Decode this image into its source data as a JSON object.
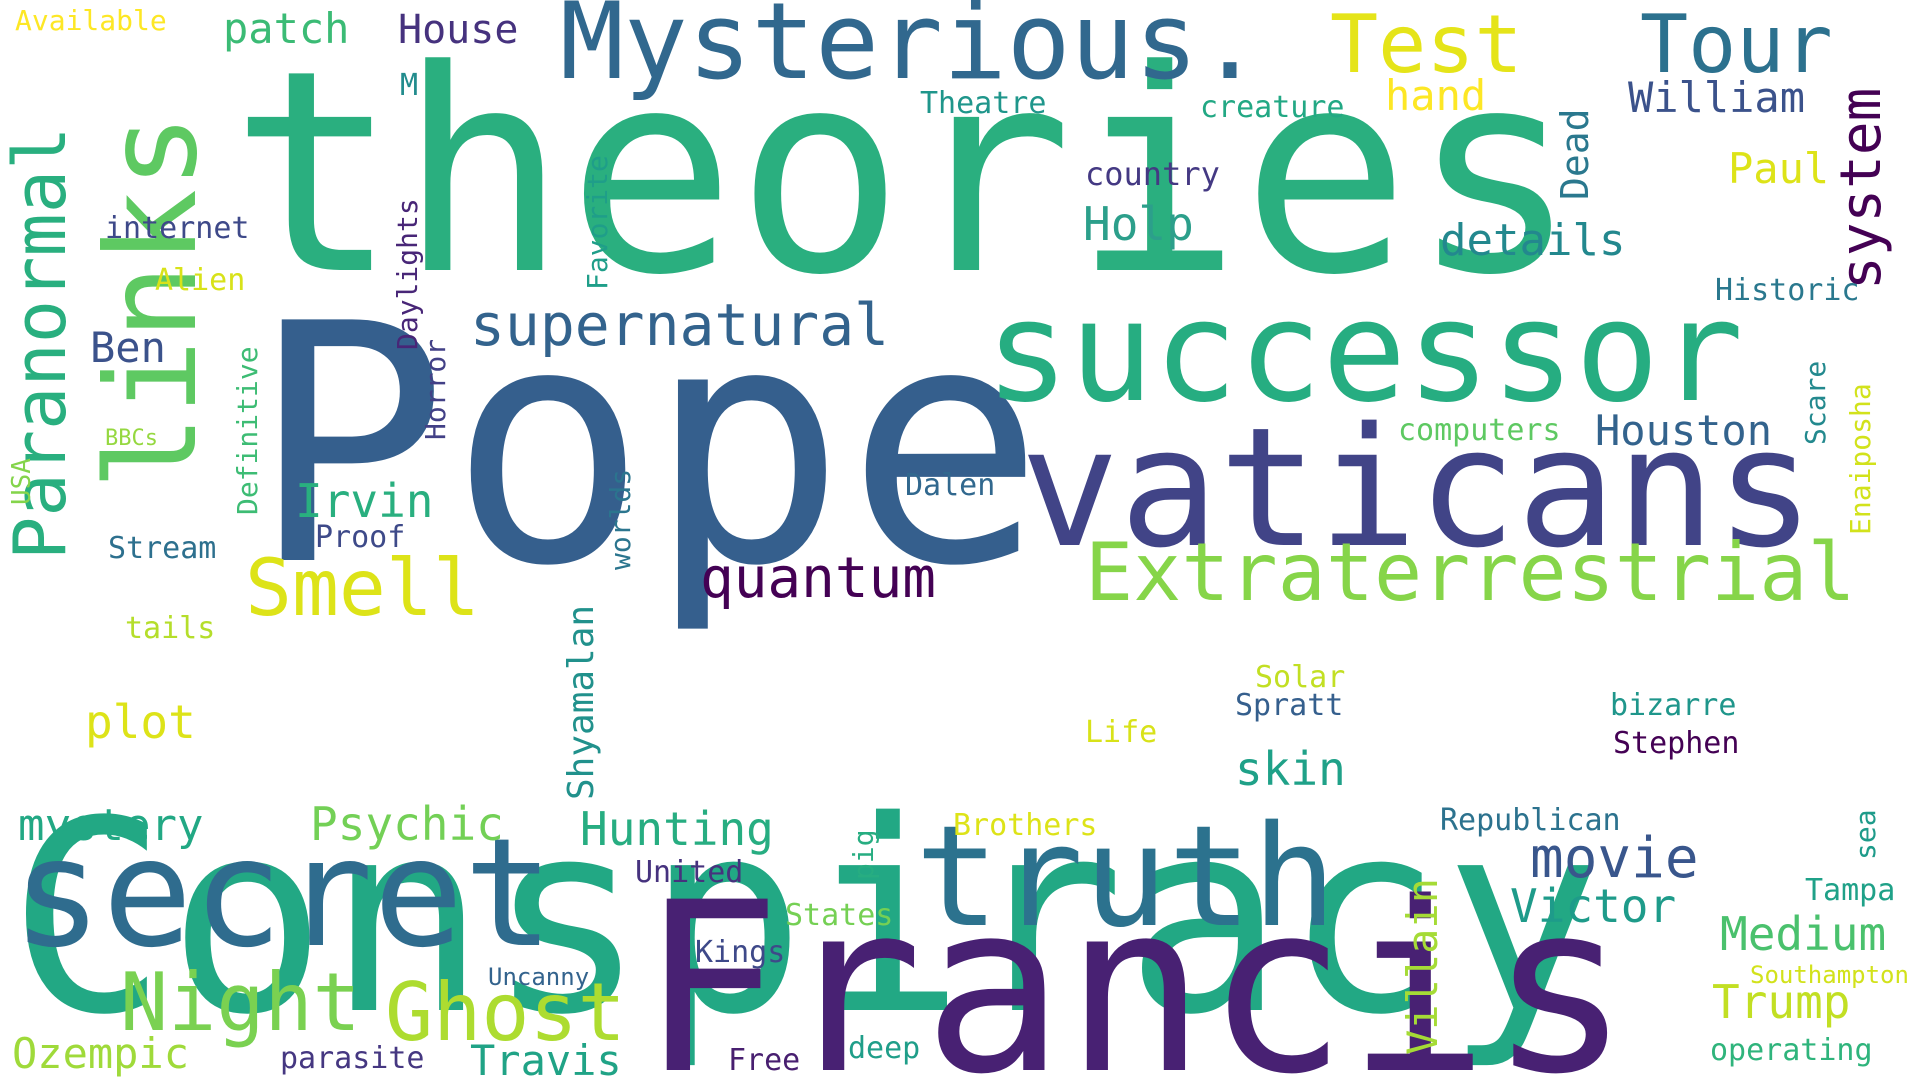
{
  "words": [
    {
      "text": "Conspiracy",
      "color": "#22a884"
    },
    {
      "text": "theories",
      "color": "#2aaf7f"
    },
    {
      "text": "Pope",
      "color": "#355f8d"
    },
    {
      "text": "Francis",
      "color": "#482173"
    },
    {
      "text": "successor",
      "color": "#26ad81"
    },
    {
      "text": "vaticans",
      "color": "#414487"
    },
    {
      "text": "truth",
      "color": "#2c728e"
    },
    {
      "text": "secret",
      "color": "#2f6c8e"
    },
    {
      "text": "Mysterious.",
      "color": "#31688e"
    },
    {
      "text": "links",
      "color": "#5ec962"
    },
    {
      "text": "Extraterrestrial",
      "color": "#86d549"
    },
    {
      "text": "Paranormal",
      "color": "#29af7f"
    },
    {
      "text": "Ghost",
      "color": "#addc30"
    },
    {
      "text": "Night",
      "color": "#7ad151"
    },
    {
      "text": "supernatural",
      "color": "#33638d"
    },
    {
      "text": "Smell",
      "color": "#dde318"
    },
    {
      "text": "quantum",
      "color": "#440154"
    },
    {
      "text": "movie",
      "color": "#39568c"
    },
    {
      "text": "Test",
      "color": "#e5e419"
    },
    {
      "text": "Tour",
      "color": "#2c718e"
    },
    {
      "text": "system",
      "color": "#440154"
    },
    {
      "text": "Hunting",
      "color": "#27ad81"
    },
    {
      "text": "Psychic",
      "color": "#73d056"
    },
    {
      "text": "mystery",
      "color": "#22a884"
    },
    {
      "text": "Shyamalan",
      "color": "#21918c"
    },
    {
      "text": "Villain",
      "color": "#a5db36"
    },
    {
      "text": "Victor",
      "color": "#1e9b8a"
    },
    {
      "text": "Medium",
      "color": "#4ac16d"
    },
    {
      "text": "Trump",
      "color": "#c2df23"
    },
    {
      "text": "Houston",
      "color": "#33638d"
    },
    {
      "text": "details",
      "color": "#23888e"
    },
    {
      "text": "Irvin",
      "color": "#29af7f"
    },
    {
      "text": "Ben",
      "color": "#3b528b"
    },
    {
      "text": "plot",
      "color": "#dde318"
    },
    {
      "text": "skin",
      "color": "#1fa188"
    },
    {
      "text": "Ozempic",
      "color": "#9fda3a"
    },
    {
      "text": "Travis",
      "color": "#20a386"
    },
    {
      "text": "William",
      "color": "#3b528b"
    },
    {
      "text": "Holp",
      "color": "#2c9f8b"
    },
    {
      "text": "patch",
      "color": "#3bbb75"
    },
    {
      "text": "House",
      "color": "#46327e"
    },
    {
      "text": "hand",
      "color": "#fde725"
    },
    {
      "text": "Paul",
      "color": "#dde318"
    },
    {
      "text": "Dead",
      "color": "#2a788e"
    },
    {
      "text": "country",
      "color": "#443983"
    },
    {
      "text": "Historic",
      "color": "#2a788e"
    },
    {
      "text": "computers",
      "color": "#5ec962"
    },
    {
      "text": "Scare",
      "color": "#23898e"
    },
    {
      "text": "Enaiposha",
      "color": "#d2e21b"
    },
    {
      "text": "Dalen",
      "color": "#31688e"
    },
    {
      "text": "Proof",
      "color": "#3e4a89"
    },
    {
      "text": "Stream",
      "color": "#2d708e"
    },
    {
      "text": "internet",
      "color": "#3e4989"
    },
    {
      "text": "Alien",
      "color": "#d8e219"
    },
    {
      "text": "BBCs",
      "color": "#95d840"
    },
    {
      "text": "USA",
      "color": "#84d44b"
    },
    {
      "text": "Definitive",
      "color": "#3dbc74"
    },
    {
      "text": "Horror",
      "color": "#424086"
    },
    {
      "text": "Daylights",
      "color": "#482677"
    },
    {
      "text": "Favorite",
      "color": "#1f9e89"
    },
    {
      "text": "worlds",
      "color": "#2b758e"
    },
    {
      "text": "tails",
      "color": "#b5de2b"
    },
    {
      "text": "Available",
      "color": "#fde725"
    },
    {
      "text": "M",
      "color": "#228c8d"
    },
    {
      "text": "Theatre",
      "color": "#1f968b"
    },
    {
      "text": "creature",
      "color": "#22a884"
    },
    {
      "text": "Solar",
      "color": "#c2df23"
    },
    {
      "text": "Spratt",
      "color": "#355f8d"
    },
    {
      "text": "Life",
      "color": "#d8e219"
    },
    {
      "text": "bizarre",
      "color": "#1f968b"
    },
    {
      "text": "Stephen",
      "color": "#440154"
    },
    {
      "text": "Republican",
      "color": "#2c728e"
    },
    {
      "text": "sea",
      "color": "#1e9b8a"
    },
    {
      "text": "Tampa",
      "color": "#1fa188"
    },
    {
      "text": "Brothers",
      "color": "#dde318"
    },
    {
      "text": "pig",
      "color": "#27ad81"
    },
    {
      "text": "United",
      "color": "#46327e"
    },
    {
      "text": "States",
      "color": "#75d054"
    },
    {
      "text": "Kings",
      "color": "#3e4989"
    },
    {
      "text": "Uncanny",
      "color": "#33638d"
    },
    {
      "text": "parasite",
      "color": "#453781"
    },
    {
      "text": "Free",
      "color": "#481f70"
    },
    {
      "text": "deep",
      "color": "#1f9e89"
    },
    {
      "text": "operating",
      "color": "#2fb47c"
    },
    {
      "text": "Southampton",
      "color": "#d2e21b"
    }
  ]
}
